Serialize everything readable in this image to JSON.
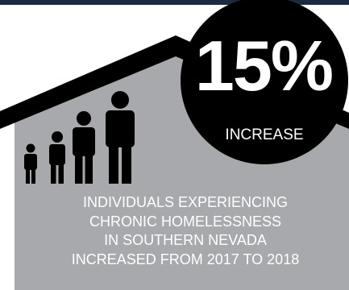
{
  "colors": {
    "top_bar": "#1b2a3e",
    "roof": "#000000",
    "house_body": "#a7a9ac",
    "circle": "#000000",
    "text": "#ffffff",
    "figures": "#000000"
  },
  "stat": {
    "value": "15%",
    "label": "INCREASE"
  },
  "caption": {
    "lines": [
      "INDIVIDUALS EXPERIENCING",
      "CHRONIC HOMELESSNESS",
      "IN SOUTHERN NEVADA",
      "INCREASED FROM 2017 TO 2018"
    ]
  },
  "icons": [
    "person-icon",
    "person-icon",
    "person-icon",
    "person-icon"
  ]
}
